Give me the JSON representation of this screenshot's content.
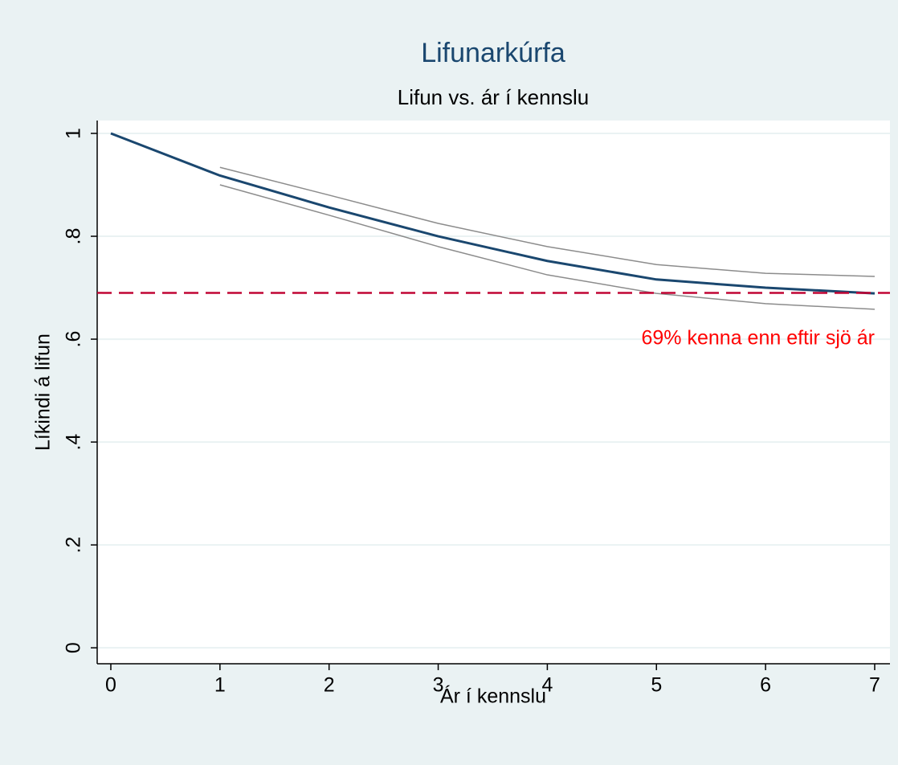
{
  "chart_data": {
    "type": "line",
    "title": "Lifunarkúrfa",
    "subtitle": "Lifun vs. ár í kennslu",
    "xlabel": "Ár í kennslu",
    "ylabel": "Líkindi á lifun",
    "x": [
      0,
      1,
      2,
      3,
      4,
      5,
      6,
      7
    ],
    "series": [
      {
        "color": "#1a476f",
        "width": 3,
        "values": [
          1,
          0.918,
          0.856,
          0.8,
          0.752,
          0.716,
          0.7,
          0.689
        ]
      },
      {
        "color": "#8c8c8c",
        "width": 1.5,
        "values": [
          null,
          0.934,
          0.88,
          0.825,
          0.78,
          0.745,
          0.728,
          0.722
        ]
      },
      {
        "color": "#8c8c8c",
        "width": 1.5,
        "values": [
          null,
          0.9,
          0.841,
          0.78,
          0.725,
          0.689,
          0.669,
          0.658
        ]
      }
    ],
    "xlim": [
      -0.125,
      7.14
    ],
    "ylim": [
      -0.031,
      1.025
    ],
    "xticks": [
      0,
      1,
      2,
      3,
      4,
      5,
      6,
      7
    ],
    "yticks": [
      0,
      {
        "value": 0.2,
        "label": ".2"
      },
      {
        "value": 0.4,
        "label": ".4"
      },
      {
        "value": 0.6,
        "label": ".6"
      },
      {
        "value": 0.8,
        "label": ".8"
      },
      1
    ],
    "grid": true,
    "reference_line": {
      "value": 0.69,
      "color": "#c10534",
      "dashed": true
    },
    "annotation": {
      "text": "69% kenna enn eftir sjö ár",
      "x": 7,
      "y": 0.6,
      "color": "#ff0000"
    }
  }
}
